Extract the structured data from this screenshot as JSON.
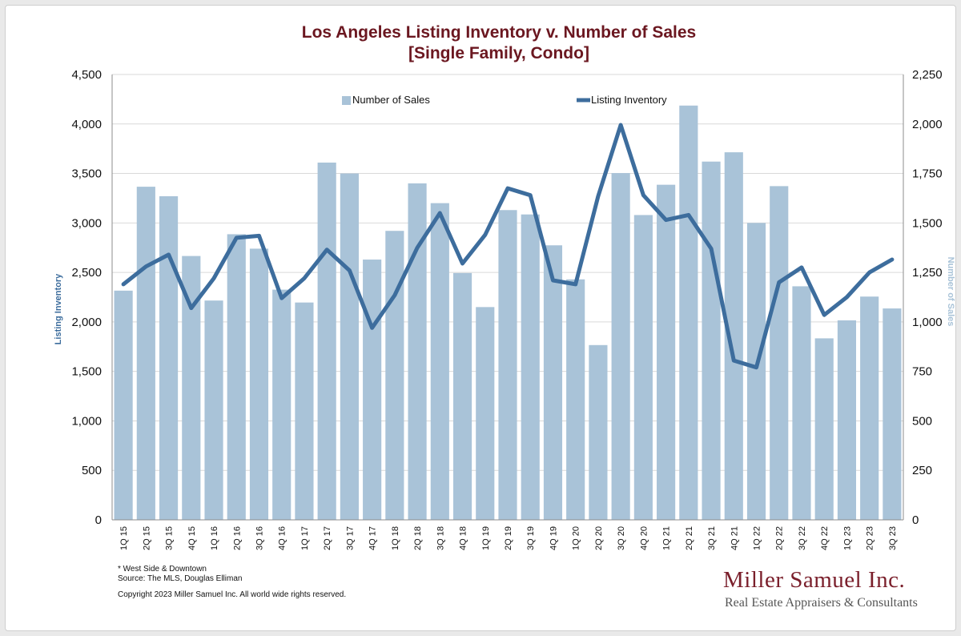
{
  "chart_data": {
    "type": "bar+line",
    "title": "Los Angeles Listing Inventory v. Number of Sales",
    "subtitle": "[Single Family, Condo]",
    "categories": [
      "1Q 15",
      "2Q 15",
      "3Q 15",
      "4Q 15",
      "1Q 16",
      "2Q 16",
      "3Q 16",
      "4Q 16",
      "1Q 17",
      "2Q 17",
      "3Q 17",
      "4Q 17",
      "1Q 18",
      "2Q 18",
      "3Q 18",
      "4Q 18",
      "1Q 19",
      "2Q 19",
      "3Q 19",
      "4Q 19",
      "1Q 20",
      "2Q 20",
      "3Q 20",
      "4Q 20",
      "1Q 21",
      "2Q 21",
      "3Q 21",
      "4Q 21",
      "1Q 22",
      "2Q 22",
      "3Q 22",
      "4Q 22",
      "1Q 23",
      "2Q 23",
      "3Q 23"
    ],
    "series": [
      {
        "name": "Number of Sales",
        "type": "bar",
        "axis": "right",
        "color": "#a9c3d8",
        "values": [
          1158,
          1683,
          1635,
          1333,
          1108,
          1443,
          1370,
          1163,
          1098,
          1805,
          1750,
          1315,
          1460,
          1700,
          1600,
          1247,
          1075,
          1565,
          1543,
          1387,
          1215,
          883,
          1752,
          1540,
          1693,
          2093,
          1810,
          1857,
          1500,
          1686,
          1180,
          917,
          1008,
          1128,
          1068
        ]
      },
      {
        "name": "Listing Inventory",
        "type": "line",
        "axis": "left",
        "color": "#3d6d9d",
        "values": [
          2380,
          2560,
          2680,
          2140,
          2440,
          2850,
          2870,
          2240,
          2440,
          2730,
          2520,
          1940,
          2270,
          2750,
          3100,
          2590,
          2880,
          3350,
          3280,
          2420,
          2380,
          3270,
          3990,
          3280,
          3030,
          3080,
          2740,
          1610,
          1540,
          2400,
          2550,
          2070,
          2250,
          2500,
          2630
        ]
      }
    ],
    "y_left": {
      "label": "Listing Inventory",
      "min": 0,
      "max": 4500,
      "step": 500,
      "ticks": [
        "0",
        "500",
        "1,000",
        "1,500",
        "2,000",
        "2,500",
        "3,000",
        "3,500",
        "4,000",
        "4,500"
      ]
    },
    "y_right": {
      "label": "Number of Sales",
      "min": 0,
      "max": 2250,
      "step": 250,
      "ticks": [
        "0",
        "250",
        "500",
        "750",
        "1,000",
        "1,250",
        "1,500",
        "1,750",
        "2,000",
        "2,250"
      ]
    },
    "grid": true,
    "legend_position": "top"
  },
  "footnotes": {
    "note": "* West Side & Downtown",
    "source": "Source: The MLS, Douglas Elliman",
    "copyright": "Copyright 2023 Miller Samuel Inc.  All world wide rights reserved."
  },
  "brand": {
    "name": "Miller Samuel Inc.",
    "tagline": "Real Estate Appraisers & Consultants"
  },
  "colors": {
    "title": "#6b1720",
    "left_axis_title": "#3d6d9d",
    "right_axis_title": "#a9c3d8",
    "grid": "#d9d9d9"
  }
}
